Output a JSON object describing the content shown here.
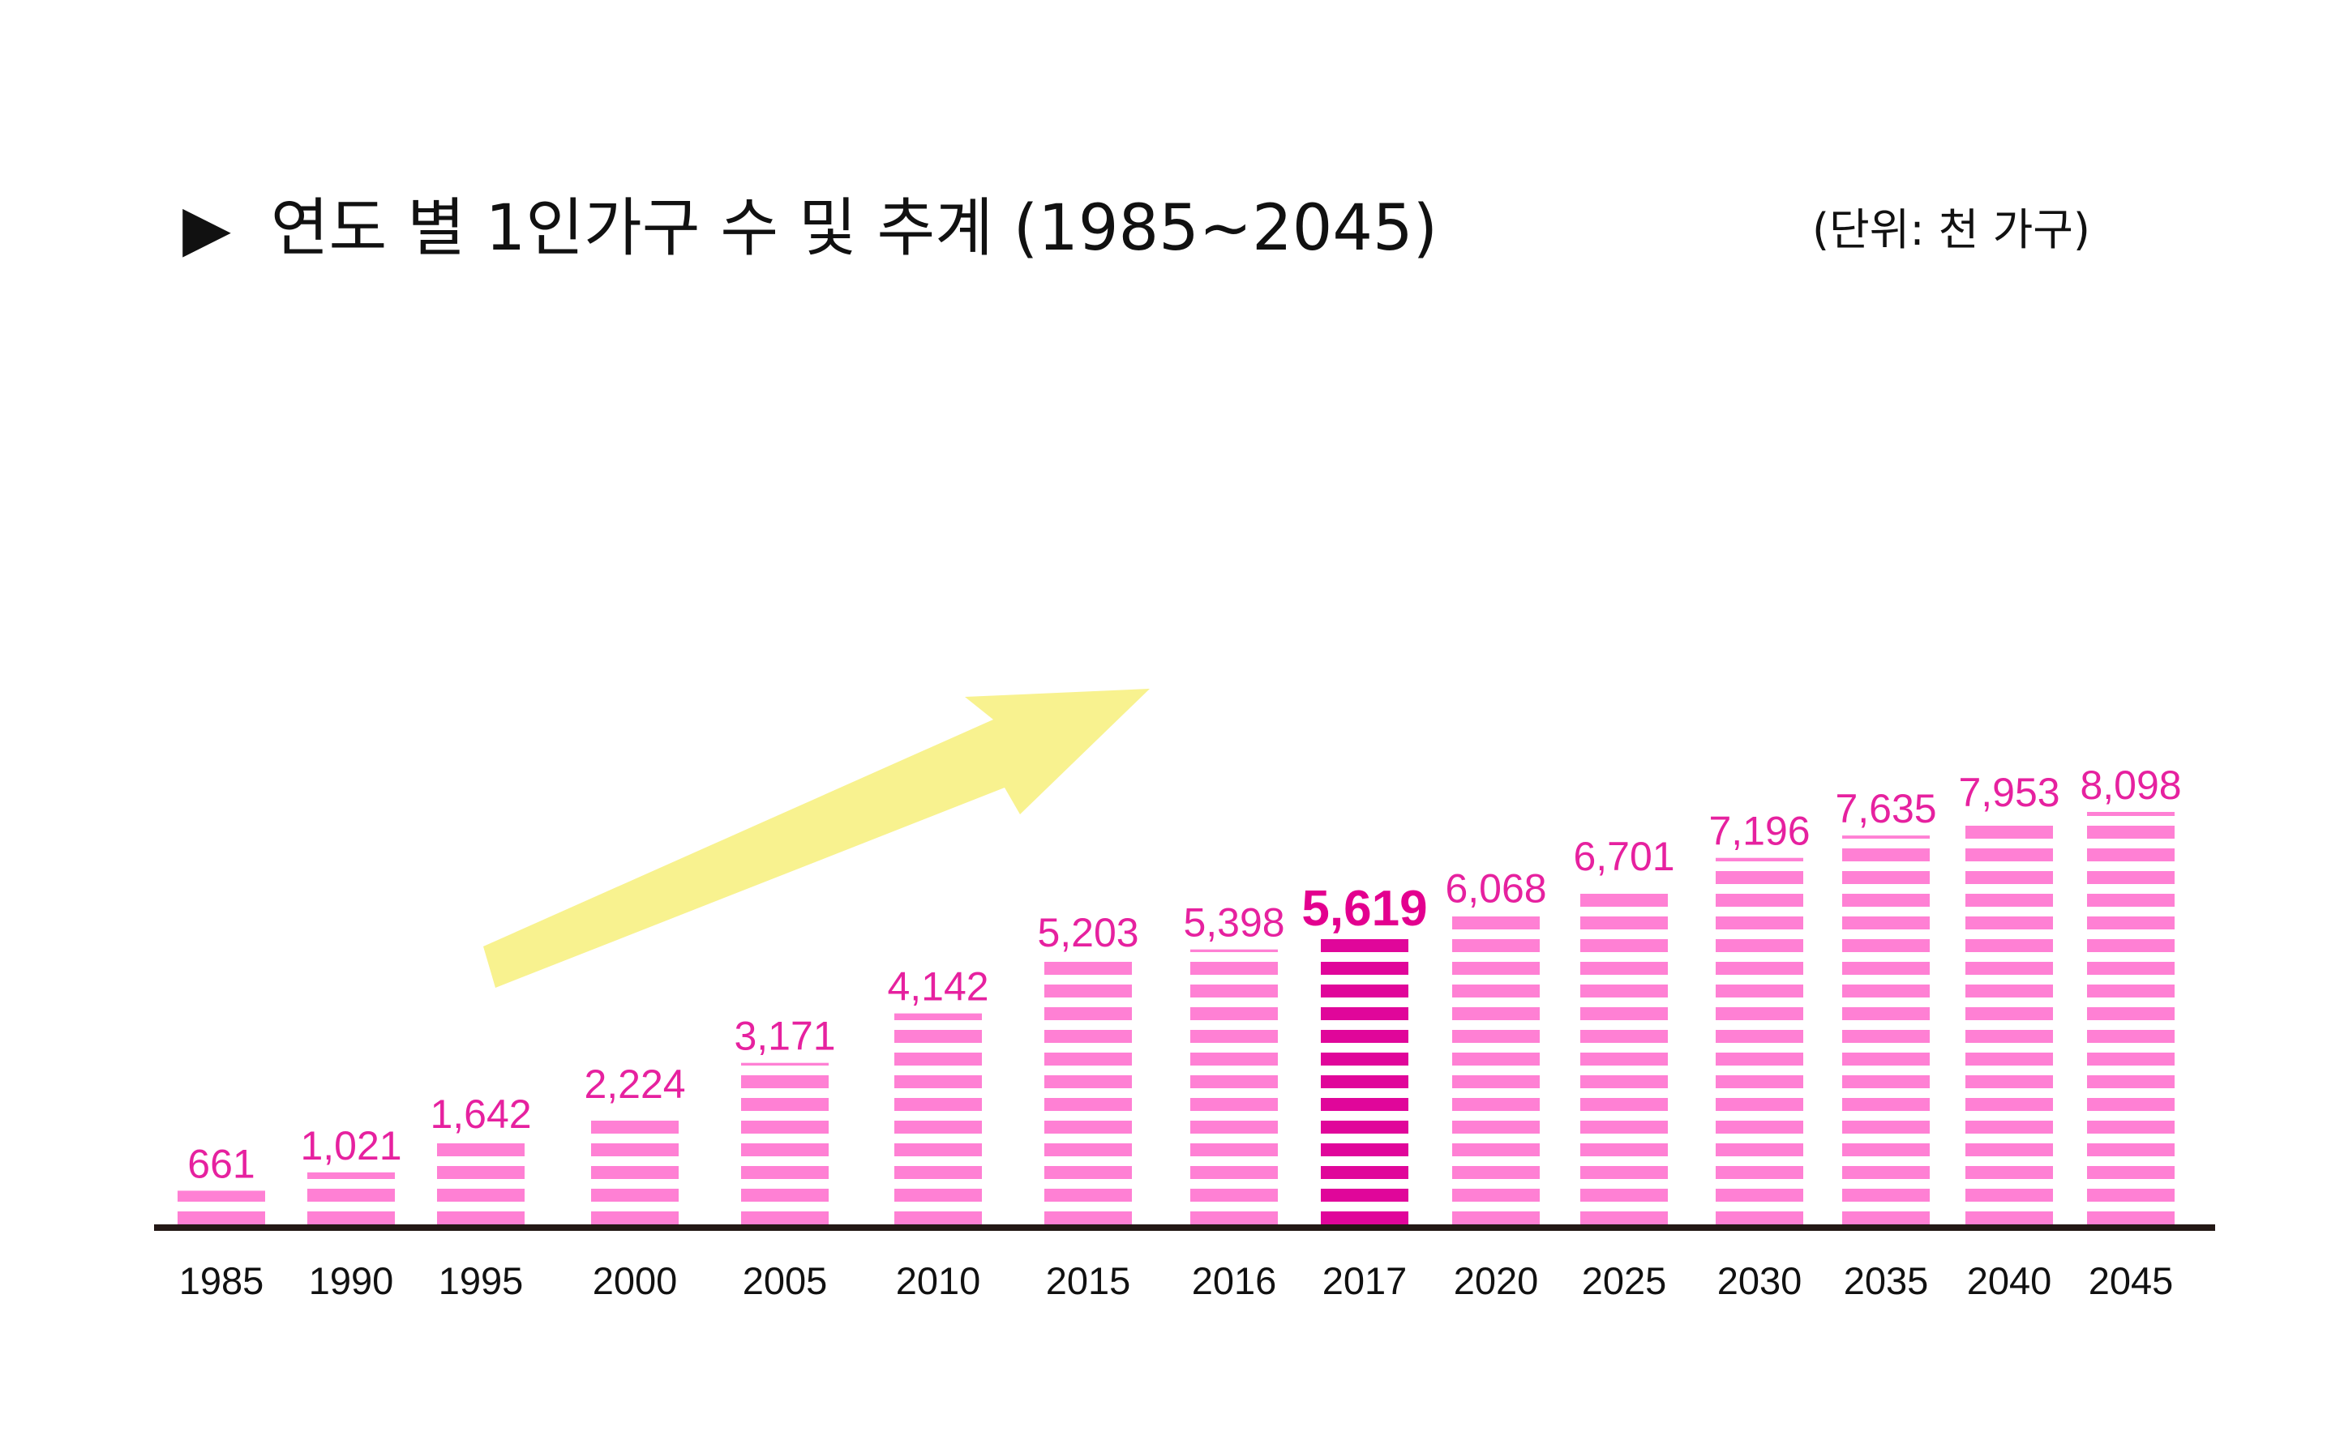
{
  "title": "연도 별 1인가구 수 및 추계 (1985~2045)",
  "title_marker": "▶",
  "unit": "(단위: 천 가구)",
  "colors": {
    "bar": "#ff80d4",
    "bar_highlight": "#e0069a",
    "label": "#e6219f",
    "label_highlight": "#e3008f",
    "axis": "#231815",
    "arrow": "#f8f28f"
  },
  "chart_data": {
    "type": "bar",
    "title": "연도 별 1인가구 수 및 추계 (1985~2045)",
    "unit": "(단위: 천 가구)",
    "xlabel": "",
    "ylabel": "",
    "categories": [
      "1985",
      "1990",
      "1995",
      "2000",
      "2005",
      "2010",
      "2015",
      "2016",
      "2017",
      "2020",
      "2025",
      "2030",
      "2035",
      "2040",
      "2045"
    ],
    "values": [
      661,
      1021,
      1642,
      2224,
      3171,
      4142,
      5203,
      5398,
      5619,
      6068,
      6701,
      7196,
      7635,
      7953,
      8098
    ],
    "value_labels": [
      "661",
      "1,021",
      "1,642",
      "2,224",
      "3,171",
      "4,142",
      "5,203",
      "5,398",
      "5,619",
      "6,068",
      "6,701",
      "7,196",
      "7,635",
      "7,953",
      "8,098"
    ],
    "highlight_category": "2017",
    "ylim": [
      0,
      8098
    ],
    "grid": false,
    "legend": "none",
    "annotation": "upward-trend-arrow"
  }
}
